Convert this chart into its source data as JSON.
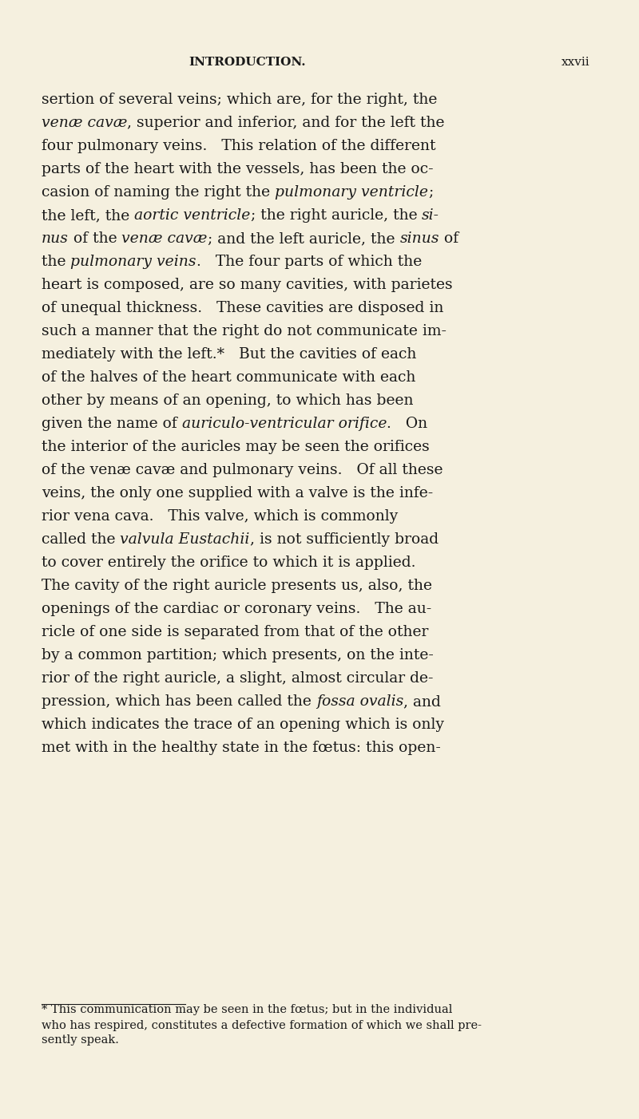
{
  "background_color": "#f5f0df",
  "page_width": 8.0,
  "page_height": 14.02,
  "header_left": "INTRODUCTION.",
  "header_right": "xxvii",
  "text_color": "#1a1a1a",
  "body_fontsize": 13.5,
  "footnote_fontsize": 10.5,
  "lines": [
    [
      [
        "sertion of several veins; which are, for the right, the",
        "normal"
      ]
    ],
    [
      [
        "venæ cavæ",
        "italic"
      ],
      [
        ", superior and inferior, and for the left the",
        "normal"
      ]
    ],
    [
      [
        "four pulmonary veins.   This relation of the different",
        "normal"
      ]
    ],
    [
      [
        "parts of the heart with the vessels, has been the oc-",
        "normal"
      ]
    ],
    [
      [
        "casion of naming the right the ",
        "normal"
      ],
      [
        "pulmonary ventricle",
        "italic"
      ],
      [
        ";",
        "normal"
      ]
    ],
    [
      [
        "the left, the ",
        "normal"
      ],
      [
        "aortic ventricle",
        "italic"
      ],
      [
        "; the right auricle, the ",
        "normal"
      ],
      [
        "si-",
        "italic"
      ]
    ],
    [
      [
        "nus",
        "italic"
      ],
      [
        " of the ",
        "normal"
      ],
      [
        "venæ cavæ",
        "italic"
      ],
      [
        "; and the left auricle, the ",
        "normal"
      ],
      [
        "sinus",
        "italic"
      ],
      [
        " of",
        "normal"
      ]
    ],
    [
      [
        "the ",
        "normal"
      ],
      [
        "pulmonary veins",
        "italic"
      ],
      [
        ".   The four parts of which the",
        "normal"
      ]
    ],
    [
      [
        "heart is composed, are so many cavities, with parietes",
        "normal"
      ]
    ],
    [
      [
        "of unequal thickness.   These cavities are disposed in",
        "normal"
      ]
    ],
    [
      [
        "such a manner that the right do not communicate im-",
        "normal"
      ]
    ],
    [
      [
        "mediately with the left.*   But the cavities of each",
        "normal"
      ]
    ],
    [
      [
        "of the halves of the heart communicate with each",
        "normal"
      ]
    ],
    [
      [
        "other by means of an opening, to which has been",
        "normal"
      ]
    ],
    [
      [
        "given the name of ",
        "normal"
      ],
      [
        "auriculo-ventricular orifice",
        "italic"
      ],
      [
        ".   On",
        "normal"
      ]
    ],
    [
      [
        "the interior of the auricles may be seen the orifices",
        "normal"
      ]
    ],
    [
      [
        "of the venæ cavæ and pulmonary veins.   Of all these",
        "normal"
      ]
    ],
    [
      [
        "veins, the only one supplied with a valve is the infe-",
        "normal"
      ]
    ],
    [
      [
        "rior vena cava.   This valve, which is commonly",
        "normal"
      ]
    ],
    [
      [
        "called the ",
        "normal"
      ],
      [
        "valvula Eustachii",
        "italic"
      ],
      [
        ", is not sufficiently broad",
        "normal"
      ]
    ],
    [
      [
        "to cover entirely the orifice to which it is applied.",
        "normal"
      ]
    ],
    [
      [
        "The cavity of the right auricle presents us, also, the",
        "normal"
      ]
    ],
    [
      [
        "openings of the cardiac or coronary veins.   The au-",
        "normal"
      ]
    ],
    [
      [
        "ricle of one side is separated from that of the other",
        "normal"
      ]
    ],
    [
      [
        "by a common partition; which presents, on the inte-",
        "normal"
      ]
    ],
    [
      [
        "rior of the right auricle, a slight, almost circular de-",
        "normal"
      ]
    ],
    [
      [
        "pression, which has been called the ",
        "normal"
      ],
      [
        "fossa ovalis",
        "italic"
      ],
      [
        ", and",
        "normal"
      ]
    ],
    [
      [
        "which indicates the trace of an opening which is only",
        "normal"
      ]
    ],
    [
      [
        "met with in the healthy state in the fœtus: this open-",
        "normal"
      ]
    ]
  ],
  "footnote_lines": [
    [
      [
        "* This communication may be seen in the fœtus; but in the individual",
        "normal"
      ]
    ],
    [
      [
        "who has respired, constitutes a defective formation of which we shall pre-",
        "normal"
      ]
    ],
    [
      [
        "sently speak.",
        "normal"
      ]
    ]
  ]
}
